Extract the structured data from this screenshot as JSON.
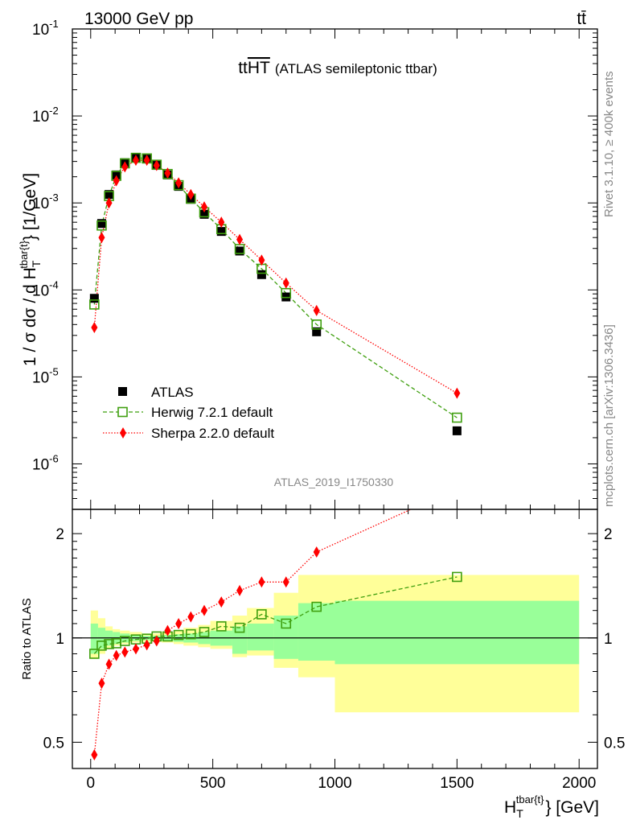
{
  "header": {
    "left": "13000 GeV pp",
    "right": "tt̄"
  },
  "plot_title": "tt",
  "plot_title_overlined": "HT",
  "plot_title_suffix": "(ATLAS semileptonic ttbar)",
  "analysis_id": "ATLAS_2019_I1750330",
  "side_text_top": "Rivet 3.1.10, ≥ 400k events",
  "side_text_bottom": "mcplots.cern.ch [arXiv:1306.3436]",
  "main_ylabel": "1 / σ dσ / d H",
  "main_ylabel_sub": "T",
  "main_ylabel_sup": "tbar{t}",
  "main_ylabel_tail": "} [1/GeV]",
  "ratio_ylabel": "Ratio to ATLAS",
  "xlabel": "H",
  "xlabel_sub": "T",
  "xlabel_sup": "tbar{t}",
  "xlabel_tail": "} [GeV]",
  "colors": {
    "atlas": "#000000",
    "herwig": "#3f9f0f",
    "sherpa": "#ff0000",
    "band_inner": "#99ff99",
    "band_outer": "#ffff99"
  },
  "chart_data": [
    {
      "panel": "main",
      "type": "scatter",
      "yscale": "log",
      "xlim": [
        -75,
        2075
      ],
      "ylim": [
        3e-07,
        0.1
      ],
      "ytick_labels": [
        "10^-6",
        "10^-5",
        "10^-4",
        "10^-3",
        "10^-2",
        "10^-1"
      ],
      "xlabel": "H_T^{tbar{t}} [GeV]",
      "ylabel": "1 / σ dσ / d H_T^{tbar{t}} [1/GeV]",
      "legend": [
        "ATLAS",
        "Herwig 7.2.1 default",
        "Sherpa 2.2.0 default"
      ],
      "legend_position": "lower-left",
      "x": [
        15,
        45,
        75,
        105,
        140,
        185,
        230,
        270,
        315,
        360,
        410,
        465,
        535,
        610,
        700,
        800,
        925,
        1500
      ],
      "series": [
        {
          "name": "ATLAS",
          "values": [
            8e-05,
            0.00058,
            0.00125,
            0.0021,
            0.0029,
            0.0033,
            0.0032,
            0.0027,
            0.0021,
            0.00155,
            0.0011,
            0.00074,
            0.00047,
            0.00028,
            0.00015,
            8.3e-05,
            3.3e-05,
            2.4e-06
          ]
        },
        {
          "name": "Herwig 7.2.1 default",
          "values": [
            6.8e-05,
            0.00055,
            0.0012,
            0.00205,
            0.00285,
            0.0033,
            0.00325,
            0.00275,
            0.00215,
            0.0016,
            0.00112,
            0.00078,
            0.0005,
            0.000295,
            0.000175,
            9.2e-05,
            4e-05,
            3.4e-06
          ]
        },
        {
          "name": "Sherpa 2.2.0 default",
          "values": [
            3.7e-05,
            0.0004,
            0.001,
            0.0018,
            0.0026,
            0.0031,
            0.0031,
            0.0027,
            0.0022,
            0.0017,
            0.00125,
            0.0009,
            0.0006,
            0.00038,
            0.00022,
            0.00012,
            5.8e-05,
            6.5e-06
          ]
        }
      ]
    },
    {
      "panel": "ratio",
      "type": "line",
      "yscale": "log",
      "xlim": [
        -75,
        2075
      ],
      "ylim": [
        0.42,
        2.35
      ],
      "ytick_labels": [
        "0.5",
        "1",
        "2"
      ],
      "xtick_labels": [
        "0",
        "500",
        "1000",
        "1500",
        "2000"
      ],
      "ylabel": "Ratio to ATLAS",
      "band_edges": [
        0,
        30,
        60,
        90,
        120,
        160,
        210,
        250,
        290,
        340,
        380,
        440,
        490,
        580,
        640,
        750,
        850,
        1000,
        2000
      ],
      "band_inner": {
        "low": [
          0.9,
          0.93,
          0.95,
          0.96,
          0.97,
          0.98,
          0.985,
          0.985,
          0.98,
          0.975,
          0.97,
          0.96,
          0.95,
          0.9,
          0.92,
          0.87,
          0.86,
          0.84
        ],
        "high": [
          1.1,
          1.07,
          1.05,
          1.04,
          1.03,
          1.02,
          1.015,
          1.015,
          1.02,
          1.025,
          1.03,
          1.04,
          1.05,
          1.08,
          1.1,
          1.16,
          1.26,
          1.28
        ]
      },
      "band_outer": {
        "low": [
          0.87,
          0.9,
          0.93,
          0.95,
          0.96,
          0.97,
          0.975,
          0.975,
          0.97,
          0.96,
          0.95,
          0.94,
          0.93,
          0.88,
          0.89,
          0.82,
          0.77,
          0.61
        ],
        "high": [
          1.2,
          1.14,
          1.08,
          1.06,
          1.05,
          1.04,
          1.03,
          1.03,
          1.04,
          1.05,
          1.07,
          1.09,
          1.12,
          1.16,
          1.22,
          1.35,
          1.52,
          1.52
        ]
      },
      "x": [
        15,
        45,
        75,
        105,
        140,
        185,
        230,
        270,
        315,
        360,
        410,
        465,
        535,
        610,
        700,
        800,
        925,
        1500
      ],
      "series": [
        {
          "name": "Herwig 7.2.1 default",
          "values": [
            0.9,
            0.95,
            0.96,
            0.965,
            0.98,
            0.99,
            0.995,
            1.01,
            1.01,
            1.02,
            1.025,
            1.04,
            1.08,
            1.07,
            1.17,
            1.1,
            1.23,
            1.5
          ]
        },
        {
          "name": "Sherpa 2.2.0 default",
          "values": [
            0.46,
            0.74,
            0.84,
            0.89,
            0.91,
            0.93,
            0.955,
            0.98,
            1.05,
            1.1,
            1.15,
            1.2,
            1.27,
            1.37,
            1.45,
            1.45,
            1.77,
            2.7
          ]
        }
      ]
    }
  ]
}
